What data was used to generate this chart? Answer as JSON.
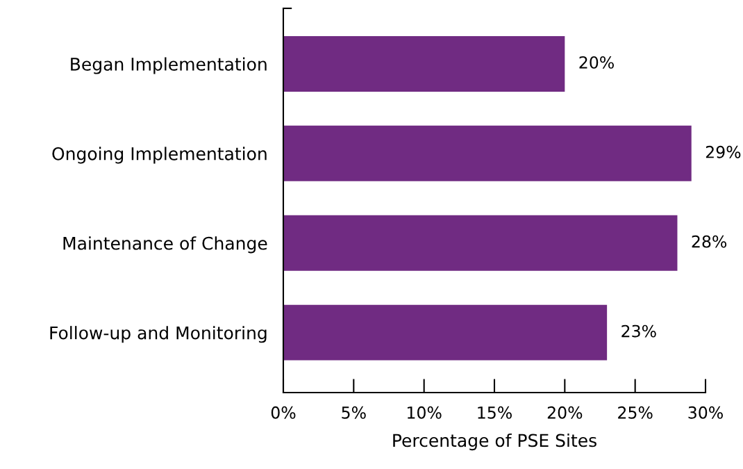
{
  "chart_data": {
    "type": "bar",
    "orientation": "horizontal",
    "xlabel": "Percentage of PSE Sites",
    "categories": [
      "Began Implementation",
      "Ongoing Implementation",
      "Maintenance of Change",
      "Follow-up and Monitoring"
    ],
    "values": [
      20,
      29,
      28,
      23
    ],
    "color": "#702b82",
    "value_labels": [
      "20%",
      "29%",
      "28%",
      "23%"
    ],
    "xlim": [
      0,
      30
    ],
    "xticks": [
      {
        "value": 0,
        "label": "0%"
      },
      {
        "value": 5,
        "label": "5%"
      },
      {
        "value": 10,
        "label": "10%"
      },
      {
        "value": 15,
        "label": "15%"
      },
      {
        "value": 20,
        "label": "20%"
      },
      {
        "value": 25,
        "label": "25%"
      },
      {
        "value": 30,
        "label": "30%"
      }
    ],
    "grid": false,
    "legend": false
  }
}
